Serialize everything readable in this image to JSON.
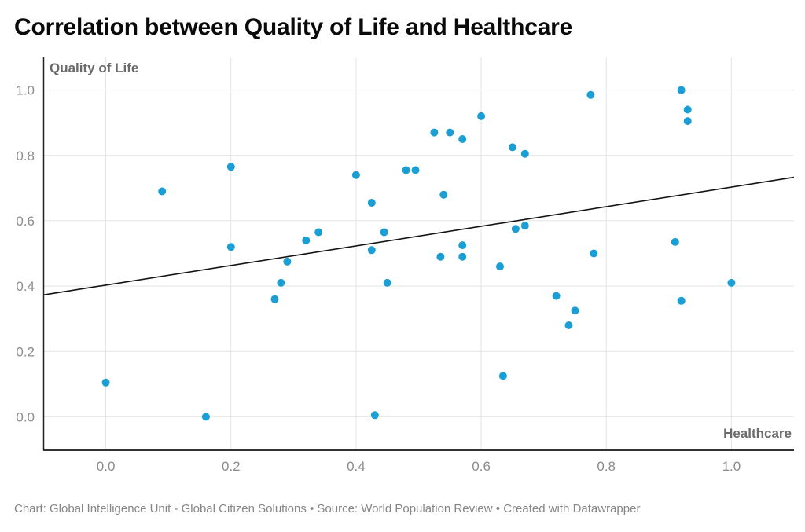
{
  "title": "Correlation between Quality of Life and Healthcare",
  "footer": {
    "text": "Chart: Global Intelligence Unit - Global Citizen Solutions  • Source: World Population Review • Created with Datawrapper"
  },
  "colors": {
    "background": "#ffffff",
    "point": "#1b9ed4",
    "trend_line": "#141414",
    "grid": "#e4e4e4",
    "x_axis_line": "#333333",
    "y_axis_line": "#222222",
    "title": "#0a0a0a",
    "axis_label": "#6b6b6b",
    "tick_label": "#8c8c8c",
    "footer": "#868686"
  },
  "chart_data": {
    "type": "scatter",
    "title": "Correlation between Quality of Life and Healthcare",
    "xlabel": "Healthcare",
    "ylabel": "Quality of Life",
    "xlim": [
      -0.1,
      1.1
    ],
    "ylim": [
      -0.1,
      1.1
    ],
    "grid": true,
    "legend": "none",
    "x_ticks": [
      0,
      0.2,
      0.4,
      0.6,
      0.8,
      1
    ],
    "x_tick_labels": [
      "0.0",
      "0.2",
      "0.4",
      "0.6",
      "0.8",
      "1.0"
    ],
    "y_ticks": [
      0,
      0.2,
      0.4,
      0.6,
      0.8,
      1
    ],
    "y_tick_labels": [
      "0.0",
      "0.2",
      "0.4",
      "0.6",
      "0.8",
      "1.0"
    ],
    "points": [
      [
        0.0,
        0.105
      ],
      [
        0.09,
        0.69
      ],
      [
        0.16,
        0.0
      ],
      [
        0.2,
        0.765
      ],
      [
        0.2,
        0.52
      ],
      [
        0.27,
        0.36
      ],
      [
        0.28,
        0.41
      ],
      [
        0.29,
        0.475
      ],
      [
        0.32,
        0.54
      ],
      [
        0.34,
        0.565
      ],
      [
        0.4,
        0.74
      ],
      [
        0.425,
        0.655
      ],
      [
        0.425,
        0.51
      ],
      [
        0.43,
        0.005
      ],
      [
        0.445,
        0.565
      ],
      [
        0.45,
        0.41
      ],
      [
        0.48,
        0.755
      ],
      [
        0.495,
        0.755
      ],
      [
        0.525,
        0.87
      ],
      [
        0.535,
        0.49
      ],
      [
        0.54,
        0.68
      ],
      [
        0.55,
        0.87
      ],
      [
        0.57,
        0.85
      ],
      [
        0.57,
        0.525
      ],
      [
        0.57,
        0.49
      ],
      [
        0.6,
        0.92
      ],
      [
        0.63,
        0.46
      ],
      [
        0.635,
        0.125
      ],
      [
        0.65,
        0.825
      ],
      [
        0.655,
        0.575
      ],
      [
        0.67,
        0.805
      ],
      [
        0.67,
        0.585
      ],
      [
        0.72,
        0.37
      ],
      [
        0.74,
        0.28
      ],
      [
        0.75,
        0.325
      ],
      [
        0.775,
        0.985
      ],
      [
        0.78,
        0.5
      ],
      [
        0.91,
        0.535
      ],
      [
        0.92,
        1.0
      ],
      [
        0.92,
        0.355
      ],
      [
        0.93,
        0.94
      ],
      [
        0.93,
        0.905
      ],
      [
        1.0,
        0.41
      ]
    ],
    "trend_line": {
      "type": "linear",
      "slope": 0.3,
      "intercept": 0.403,
      "x1": -0.1,
      "y1": 0.373,
      "x2": 1.1,
      "y2": 0.733
    }
  }
}
